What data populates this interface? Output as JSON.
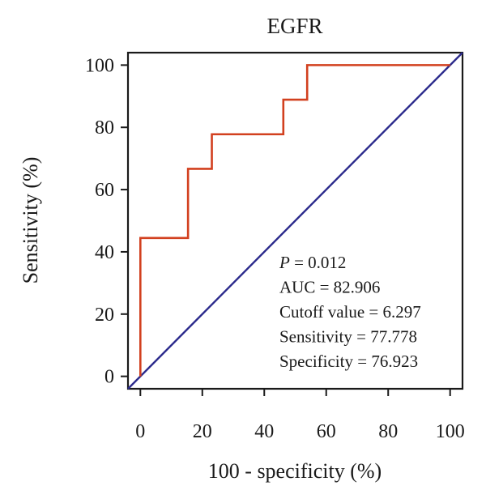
{
  "chart_data": {
    "type": "line",
    "title": "EGFR",
    "xlabel": "100 - specificity (%)",
    "ylabel": "Sensitivity (%)",
    "xlim": [
      -4,
      104
    ],
    "ylim": [
      -4,
      104
    ],
    "xticks": [
      0,
      20,
      40,
      60,
      80,
      100
    ],
    "yticks": [
      0,
      20,
      40,
      60,
      80,
      100
    ],
    "grid": false,
    "series": [
      {
        "color": "#d2401f",
        "x": [
          0,
          0,
          15.385,
          15.385,
          23.077,
          23.077,
          46.154,
          46.154,
          53.846,
          53.846,
          100
        ],
        "y": [
          0,
          44.444,
          44.444,
          66.667,
          66.667,
          77.778,
          77.778,
          88.889,
          88.889,
          100,
          100
        ]
      },
      {
        "color": "#2b2a8c",
        "x": [
          -4,
          104
        ],
        "y": [
          -4,
          104
        ]
      }
    ],
    "annotations": [
      {
        "prefix": "P",
        "text": " = 0.012"
      },
      {
        "prefix": "",
        "text": "AUC = 82.906"
      },
      {
        "prefix": "",
        "text": "Cutoff value = 6.297"
      },
      {
        "prefix": "",
        "text": "Sensitivity = 77.778"
      },
      {
        "prefix": "",
        "text": "Specificity = 76.923"
      }
    ]
  }
}
